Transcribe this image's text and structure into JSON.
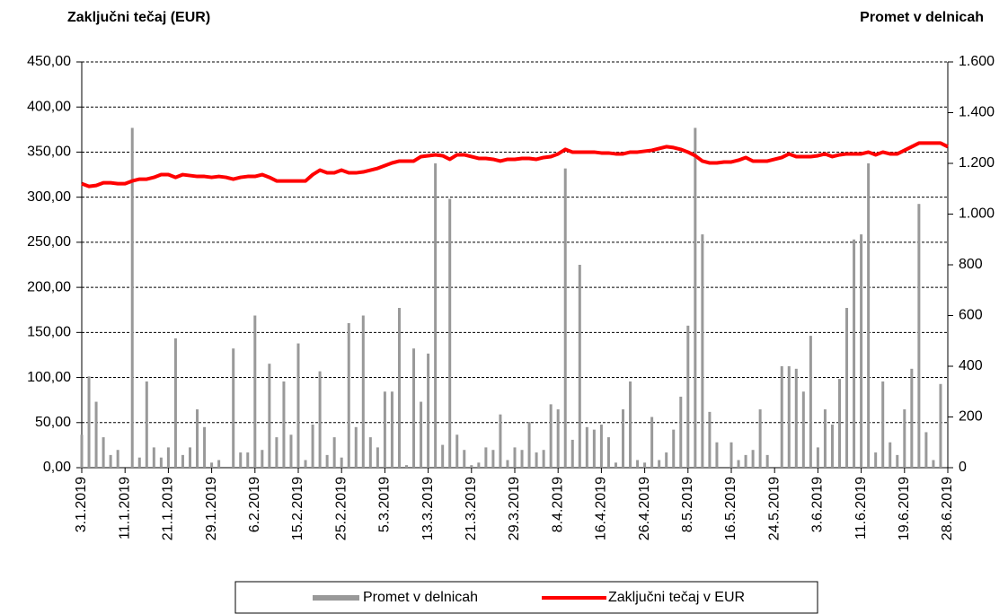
{
  "chart_data": {
    "type": "bar-line",
    "ylabel": "Zaključni tečaj (EUR)",
    "y2label": "Promet v delnicah",
    "categories": [
      "3.1.2019",
      null,
      null,
      null,
      null,
      null,
      "11.1.2019",
      null,
      null,
      null,
      null,
      null,
      "21.1.2019",
      null,
      null,
      null,
      null,
      null,
      "29.1.2019",
      null,
      null,
      null,
      null,
      null,
      "6.2.2019",
      null,
      null,
      null,
      null,
      null,
      "15.2.2019",
      null,
      null,
      null,
      null,
      null,
      "25.2.2019",
      null,
      null,
      null,
      null,
      null,
      "5.3.2019",
      null,
      null,
      null,
      null,
      null,
      "13.3.2019",
      null,
      null,
      null,
      null,
      null,
      "21.3.2019",
      null,
      null,
      null,
      null,
      null,
      "29.3.2019",
      null,
      null,
      null,
      null,
      null,
      "8.4.2019",
      null,
      null,
      null,
      null,
      null,
      "16.4.2019",
      null,
      null,
      null,
      null,
      null,
      "26.4.2019",
      null,
      null,
      null,
      null,
      null,
      "8.5.2019",
      null,
      null,
      null,
      null,
      null,
      "16.5.2019",
      null,
      null,
      null,
      null,
      null,
      "24.5.2019",
      null,
      null,
      null,
      null,
      null,
      "3.6.2019",
      null,
      null,
      null,
      null,
      null,
      "11.6.2019",
      null,
      null,
      null,
      null,
      null,
      "19.6.2019",
      null,
      null,
      null,
      null,
      null,
      "28.6.2019"
    ],
    "series": [
      {
        "name": "Promet v delnicah",
        "color": "#999999",
        "axis": "y2",
        "kind": "bar",
        "values": [
          130,
          360,
          260,
          120,
          50,
          70,
          0,
          1340,
          40,
          340,
          80,
          40,
          80,
          510,
          50,
          80,
          230,
          160,
          20,
          30,
          0,
          470,
          60,
          60,
          600,
          70,
          410,
          120,
          340,
          130,
          490,
          30,
          170,
          380,
          50,
          120,
          40,
          570,
          160,
          600,
          120,
          80,
          300,
          300,
          630,
          10,
          470,
          260,
          450,
          1200,
          90,
          1060,
          130,
          70,
          10,
          20,
          80,
          70,
          210,
          30,
          80,
          70,
          180,
          60,
          70,
          250,
          230,
          1180,
          110,
          800,
          160,
          150,
          170,
          120,
          20,
          230,
          340,
          30,
          20,
          200,
          30,
          60,
          150,
          280,
          560,
          1340,
          920,
          220,
          100,
          0,
          100,
          30,
          50,
          70,
          230,
          50,
          0,
          400,
          400,
          390,
          300,
          520,
          80,
          230,
          170,
          350,
          630,
          900,
          920,
          1200,
          60,
          340,
          100,
          50,
          230,
          390,
          1040,
          140,
          30,
          330,
          0
        ]
      },
      {
        "name": "Zaključni tečaj v EUR",
        "color": "#ff0000",
        "kind": "line",
        "values": [
          315,
          312,
          313,
          316,
          316,
          315,
          315,
          318,
          320,
          320,
          322,
          325,
          325,
          322,
          325,
          324,
          323,
          323,
          322,
          323,
          322,
          320,
          322,
          323,
          323,
          325,
          322,
          318,
          318,
          318,
          318,
          318,
          325,
          330,
          327,
          327,
          330,
          327,
          327,
          328,
          330,
          332,
          335,
          338,
          340,
          340,
          340,
          345,
          346,
          347,
          346,
          342,
          347,
          347,
          345,
          343,
          343,
          342,
          340,
          342,
          342,
          343,
          343,
          342,
          344,
          345,
          348,
          353,
          350,
          350,
          350,
          350,
          349,
          349,
          348,
          348,
          350,
          350,
          351,
          352,
          354,
          356,
          355,
          353,
          350,
          346,
          340,
          338,
          338,
          339,
          339,
          341,
          344,
          340,
          340,
          340,
          342,
          344,
          348,
          345,
          345,
          345,
          346,
          348,
          345,
          347,
          348,
          348,
          348,
          350,
          347,
          350,
          348,
          348,
          352,
          356,
          360,
          360,
          360,
          360,
          356
        ]
      }
    ],
    "ylim": [
      0,
      450
    ],
    "yticks": [
      {
        "value": 0,
        "label": "0,00"
      },
      {
        "value": 50,
        "label": "50,00"
      },
      {
        "value": 100,
        "label": "100,00"
      },
      {
        "value": 150,
        "label": "150,00"
      },
      {
        "value": 200,
        "label": "200,00"
      },
      {
        "value": 250,
        "label": "250,00"
      },
      {
        "value": 300,
        "label": "300,00"
      },
      {
        "value": 350,
        "label": "350,00"
      },
      {
        "value": 400,
        "label": "400,00"
      },
      {
        "value": 450,
        "label": "450,00"
      }
    ],
    "y2lim": [
      0,
      1600
    ],
    "y2ticks": [
      0,
      200,
      400,
      600,
      800,
      {
        "value": 1000,
        "label": "1.000"
      },
      {
        "value": 1200,
        "label": "1.200"
      },
      {
        "value": 1400,
        "label": "1.400"
      },
      {
        "value": 1600,
        "label": "1.600"
      }
    ],
    "grid": true
  }
}
